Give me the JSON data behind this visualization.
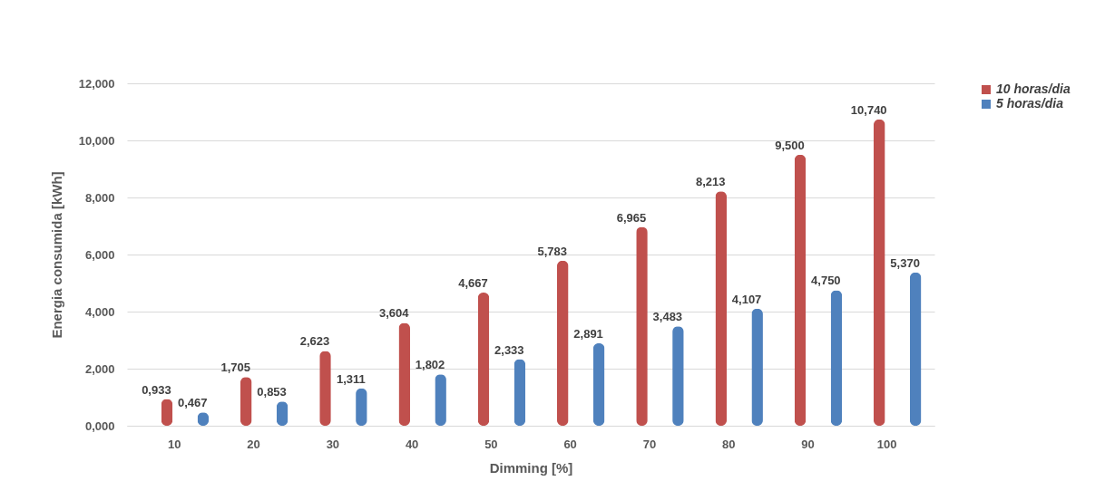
{
  "chart_data": {
    "type": "bar",
    "xlabel": "Dimming [%]",
    "ylabel": "Energia consumida [kWh]",
    "categories": [
      "10",
      "20",
      "30",
      "40",
      "50",
      "60",
      "70",
      "80",
      "90",
      "100"
    ],
    "series": [
      {
        "name": "10 horas/dia",
        "color": "#c0504d",
        "values": [
          0.933,
          1.705,
          2.623,
          3.604,
          4.667,
          5.783,
          6.965,
          8.213,
          9.5,
          10.74
        ],
        "value_labels": [
          "0,933",
          "1,705",
          "2,623",
          "3,604",
          "4,667",
          "5,783",
          "6,965",
          "8,213",
          "9,500",
          "10,740"
        ]
      },
      {
        "name": "5 horas/dia",
        "color": "#4f81bd",
        "values": [
          0.467,
          0.853,
          1.311,
          1.802,
          2.333,
          2.891,
          3.483,
          4.107,
          4.75,
          5.37
        ],
        "value_labels": [
          "0,467",
          "0,853",
          "1,311",
          "1,802",
          "2,333",
          "2,891",
          "3,483",
          "4,107",
          "4,750",
          "5,370"
        ]
      }
    ],
    "ylim": [
      0,
      12
    ],
    "yticks": [
      {
        "value": 0,
        "label": "0,000"
      },
      {
        "value": 2,
        "label": "2,000"
      },
      {
        "value": 4,
        "label": "4,000"
      },
      {
        "value": 6,
        "label": "6,000"
      },
      {
        "value": 8,
        "label": "8,000"
      },
      {
        "value": 10,
        "label": "10,000"
      },
      {
        "value": 12,
        "label": "12,000"
      }
    ],
    "grid": "y",
    "legend": "right"
  }
}
